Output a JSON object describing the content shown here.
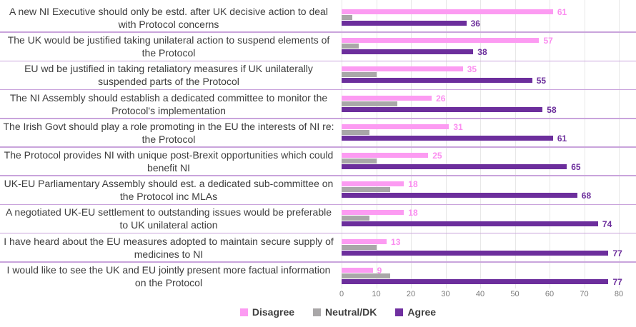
{
  "chart_data": {
    "type": "bar",
    "orientation": "horizontal",
    "title": "",
    "xlabel": "",
    "ylabel": "",
    "xlim": [
      0,
      80
    ],
    "xticks": [
      0,
      10,
      20,
      30,
      40,
      50,
      60,
      70,
      80
    ],
    "grid": "vertical",
    "legend_position": "bottom",
    "categories": [
      "A new NI Executive should only be estd. after UK decisive action to deal with Protocol concerns",
      "The UK would be justified taking unilateral action to suspend elements of the Protocol",
      "EU wd be justified in taking retaliatory measures if UK unilaterally suspended parts of the Protocol",
      "The NI Assembly should establish a dedicated committee to monitor the Protocol's implementation",
      "The Irish Govt should play a role promoting in the EU the interests of NI re: the Protocol",
      "The Protocol provides NI with unique post-Brexit opportunities which could benefit NI",
      "UK-EU Parliamentary Assembly should est. a dedicated sub-committee on the Protocol inc MLAs",
      "A negotiated UK-EU settlement to outstanding issues would be preferable to UK unilateral action",
      "I have heard about the EU measures adopted to maintain secure supply of medicines to NI",
      "I would like to see the UK and EU jointly present more factual information on the Protocol"
    ],
    "series": [
      {
        "name": "Disagree",
        "color": "#fc9bf2",
        "label_color": "#fb8df0",
        "labels_shown": true,
        "values": [
          61,
          57,
          35,
          26,
          31,
          25,
          18,
          18,
          13,
          9
        ]
      },
      {
        "name": "Neutral/DK",
        "color": "#a9a7a8",
        "label_color": "#a9a7a8",
        "labels_shown": false,
        "values": [
          3,
          5,
          10,
          16,
          8,
          10,
          14,
          8,
          10,
          14
        ]
      },
      {
        "name": "Agree",
        "color": "#6c2e9c",
        "label_color": "#6c2e9c",
        "labels_shown": true,
        "values": [
          36,
          38,
          55,
          58,
          61,
          65,
          68,
          74,
          77,
          77
        ]
      }
    ]
  },
  "colors": {
    "separator": "#c9a4dc",
    "gridline": "#e7e7e7",
    "category_text": "#3d3d3d",
    "axis_text": "#7a7a7a",
    "legend_text": "#404040"
  }
}
